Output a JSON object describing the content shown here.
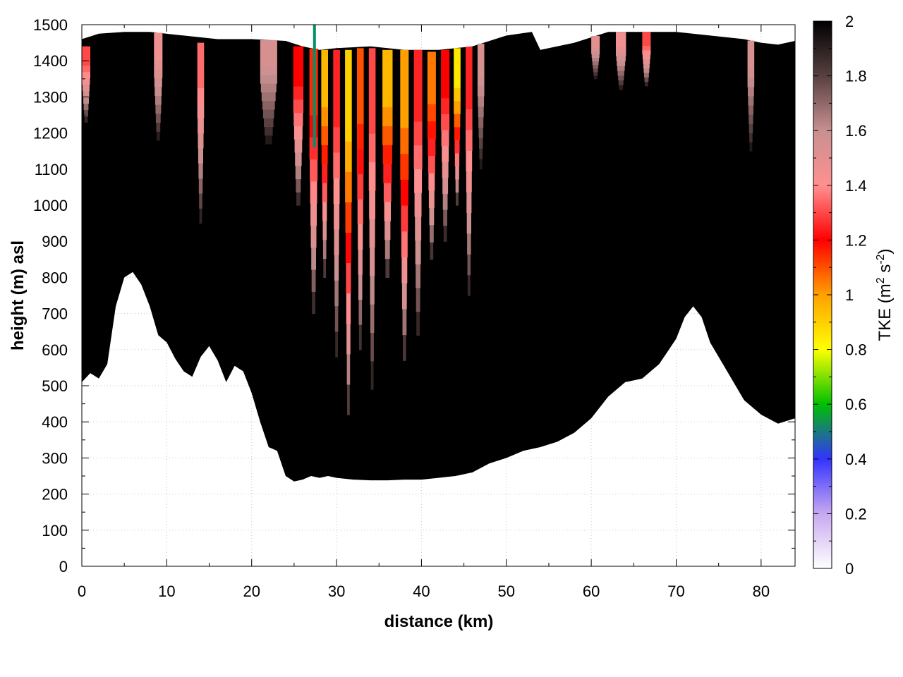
{
  "chart_data": {
    "type": "heatmap",
    "title": "",
    "xlabel": "distance (km)",
    "ylabel": "height (m) asl",
    "xlim": [
      0,
      84
    ],
    "ylim": [
      0,
      1500
    ],
    "x_ticks": [
      0,
      10,
      20,
      30,
      40,
      50,
      60,
      70,
      80
    ],
    "y_ticks": [
      0,
      100,
      200,
      300,
      400,
      500,
      600,
      700,
      800,
      900,
      1000,
      1100,
      1200,
      1300,
      1400,
      1500
    ],
    "grid": true,
    "colorbar": {
      "label_main": "TKE (m",
      "label_sup1": "2",
      "label_mid": " s",
      "label_sup2": "-2",
      "label_end": ")",
      "range": [
        0,
        2
      ],
      "ticks": [
        0,
        0.2,
        0.4,
        0.6,
        0.8,
        1,
        1.2,
        1.4,
        1.6,
        1.8,
        2
      ],
      "stops": [
        {
          "v": 0.0,
          "c": "#ffffff"
        },
        {
          "v": 0.2,
          "c": "#c8a8f0"
        },
        {
          "v": 0.4,
          "c": "#3333ff"
        },
        {
          "v": 0.6,
          "c": "#00c000"
        },
        {
          "v": 0.8,
          "c": "#ffff00"
        },
        {
          "v": 1.0,
          "c": "#ffa000"
        },
        {
          "v": 1.2,
          "c": "#ff0000"
        },
        {
          "v": 1.4,
          "c": "#ff9090"
        },
        {
          "v": 1.6,
          "c": "#c89090"
        },
        {
          "v": 1.8,
          "c": "#584040"
        },
        {
          "v": 2.0,
          "c": "#000000"
        }
      ]
    },
    "terrain": {
      "x": [
        0,
        1,
        2,
        3,
        4,
        5,
        6,
        7,
        8,
        9,
        10,
        11,
        12,
        13,
        14,
        15,
        16,
        17,
        18,
        19,
        20,
        21,
        22,
        23,
        24,
        25,
        26,
        27,
        28,
        29,
        30,
        32,
        34,
        36,
        38,
        40,
        42,
        44,
        46,
        48,
        50,
        52,
        54,
        56,
        58,
        60,
        62,
        64,
        66,
        68,
        70,
        71,
        72,
        73,
        74,
        76,
        78,
        80,
        82,
        84
      ],
      "y": [
        510,
        535,
        520,
        560,
        720,
        800,
        815,
        780,
        720,
        640,
        620,
        575,
        540,
        525,
        580,
        610,
        570,
        510,
        555,
        540,
        480,
        400,
        330,
        320,
        250,
        235,
        240,
        250,
        245,
        250,
        245,
        240,
        238,
        238,
        240,
        240,
        245,
        250,
        260,
        285,
        300,
        320,
        330,
        345,
        370,
        410,
        470,
        510,
        520,
        560,
        630,
        690,
        720,
        690,
        620,
        540,
        460,
        420,
        395,
        410
      ]
    },
    "top_boundary": {
      "x": [
        0,
        2,
        5,
        8,
        12,
        16,
        20,
        24,
        26,
        28,
        30,
        34,
        38,
        42,
        46,
        50,
        53,
        54,
        58,
        62,
        66,
        70,
        74,
        78,
        80,
        82,
        84
      ],
      "y": [
        1460,
        1475,
        1480,
        1480,
        1470,
        1460,
        1460,
        1455,
        1440,
        1430,
        1435,
        1440,
        1430,
        1430,
        1440,
        1470,
        1480,
        1430,
        1450,
        1480,
        1480,
        1480,
        1470,
        1460,
        1450,
        1445,
        1455
      ]
    },
    "plumes": [
      {
        "x": 0.5,
        "w": 1.0,
        "bottom": 1230,
        "top": 1440,
        "v": 1.3
      },
      {
        "x": 9.0,
        "w": 1.0,
        "bottom": 1180,
        "top": 1480,
        "v": 1.45
      },
      {
        "x": 14.0,
        "w": 0.8,
        "bottom": 950,
        "top": 1450,
        "v": 1.35
      },
      {
        "x": 22.0,
        "w": 2.0,
        "bottom": 1170,
        "top": 1460,
        "v": 1.55
      },
      {
        "x": 25.5,
        "w": 1.2,
        "bottom": 1000,
        "top": 1440,
        "v": 1.2
      },
      {
        "x": 27.3,
        "w": 1.0,
        "bottom": 700,
        "top": 1440,
        "v": 1.15
      },
      {
        "x": 28.6,
        "w": 0.8,
        "bottom": 800,
        "top": 1430,
        "v": 0.95
      },
      {
        "x": 30.0,
        "w": 0.8,
        "bottom": 580,
        "top": 1430,
        "v": 1.25
      },
      {
        "x": 31.4,
        "w": 0.8,
        "bottom": 420,
        "top": 1430,
        "v": 0.9
      },
      {
        "x": 32.8,
        "w": 0.8,
        "bottom": 600,
        "top": 1435,
        "v": 1.1
      },
      {
        "x": 34.2,
        "w": 0.8,
        "bottom": 490,
        "top": 1435,
        "v": 1.3
      },
      {
        "x": 36.0,
        "w": 1.2,
        "bottom": 800,
        "top": 1430,
        "v": 0.95
      },
      {
        "x": 38.0,
        "w": 1.0,
        "bottom": 570,
        "top": 1430,
        "v": 1.0
      },
      {
        "x": 39.6,
        "w": 1.0,
        "bottom": 640,
        "top": 1430,
        "v": 1.25
      },
      {
        "x": 41.2,
        "w": 1.0,
        "bottom": 850,
        "top": 1425,
        "v": 1.05
      },
      {
        "x": 42.8,
        "w": 1.0,
        "bottom": 900,
        "top": 1430,
        "v": 1.2
      },
      {
        "x": 44.2,
        "w": 0.8,
        "bottom": 1000,
        "top": 1435,
        "v": 0.85
      },
      {
        "x": 45.6,
        "w": 0.8,
        "bottom": 750,
        "top": 1440,
        "v": 1.25
      },
      {
        "x": 47.0,
        "w": 0.8,
        "bottom": 1100,
        "top": 1450,
        "v": 1.55
      },
      {
        "x": 60.5,
        "w": 1.0,
        "bottom": 1350,
        "top": 1480,
        "v": 1.5
      },
      {
        "x": 63.5,
        "w": 1.2,
        "bottom": 1320,
        "top": 1480,
        "v": 1.45
      },
      {
        "x": 66.5,
        "w": 1.0,
        "bottom": 1330,
        "top": 1480,
        "v": 1.3
      },
      {
        "x": 78.8,
        "w": 0.8,
        "bottom": 1150,
        "top": 1460,
        "v": 1.55
      }
    ],
    "marker_line": {
      "x": 27.4,
      "y0": 1160,
      "y1": 1500,
      "color": "#00906a"
    }
  }
}
